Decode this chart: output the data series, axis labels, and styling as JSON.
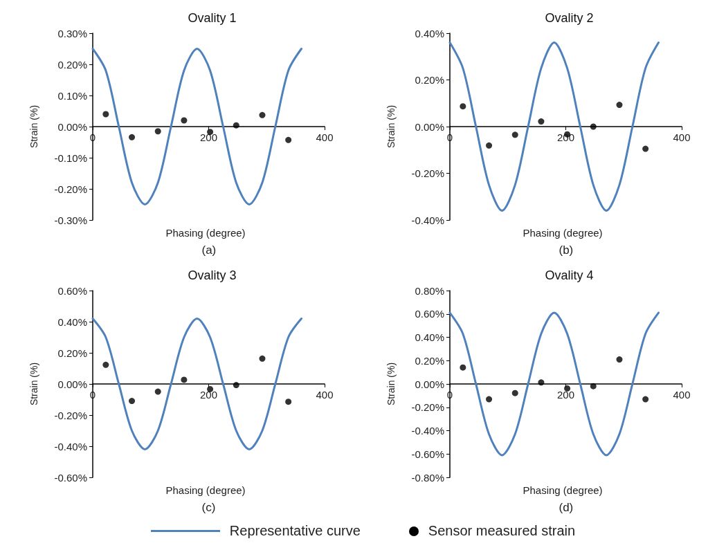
{
  "chart_data": [
    {
      "type": "line",
      "title": "Ovality 1",
      "xlabel": "Phasing (degree)",
      "ylabel": "Strain (%)",
      "annotations": [
        "(a)"
      ],
      "xlim": [
        0,
        400
      ],
      "xticks": [
        0,
        200,
        400
      ],
      "ylim": [
        -0.3,
        0.3
      ],
      "yticks": [
        {
          "value": -0.3,
          "label": "-0.30%"
        },
        {
          "value": -0.2,
          "label": "-0.20%"
        },
        {
          "value": -0.1,
          "label": "-0.10%"
        },
        {
          "value": 0,
          "label": "0.00%"
        },
        {
          "value": 0.1,
          "label": "0.10%"
        },
        {
          "value": 0.2,
          "label": "0.20%"
        },
        {
          "value": 0.3,
          "label": "0.30%"
        }
      ],
      "grid": false,
      "series": [
        {
          "type": "line",
          "color": "#4f81bd",
          "marker": "none",
          "line_style": "solid",
          "x": [
            0,
            22.5,
            45,
            67.5,
            90,
            112.5,
            135,
            157.5,
            180,
            202.5,
            225,
            247.5,
            270,
            292.5,
            315,
            337.5,
            360
          ],
          "values": [
            0.25,
            0.18,
            0,
            -0.18,
            -0.25,
            -0.18,
            0,
            0.18,
            0.25,
            0.18,
            0,
            -0.18,
            -0.25,
            -0.18,
            0,
            0.18,
            0.25
          ]
        },
        {
          "type": "scatter",
          "color": "#000000",
          "marker": "circle",
          "x": [
            22.5,
            67.5,
            112.5,
            157.5,
            202.5,
            247.5,
            292.5,
            337.5
          ],
          "values": [
            0.04,
            -0.034,
            -0.015,
            0.02,
            -0.017,
            0.004,
            0.037,
            -0.043
          ]
        }
      ]
    },
    {
      "type": "line",
      "title": "Ovality 2",
      "xlabel": "Phasing (degree)",
      "ylabel": "Strain (%)",
      "annotations": [
        "(b)"
      ],
      "xlim": [
        0,
        400
      ],
      "xticks": [
        0,
        200,
        400
      ],
      "ylim": [
        -0.4,
        0.4
      ],
      "yticks": [
        {
          "value": -0.4,
          "label": "-0.40%"
        },
        {
          "value": -0.2,
          "label": "-0.20%"
        },
        {
          "value": 0,
          "label": "0.00%"
        },
        {
          "value": 0.2,
          "label": "0.20%"
        },
        {
          "value": 0.4,
          "label": "0.40%"
        }
      ],
      "grid": false,
      "series": [
        {
          "type": "line",
          "color": "#4f81bd",
          "marker": "none",
          "line_style": "solid",
          "x": [
            0,
            22.5,
            45,
            67.5,
            90,
            112.5,
            135,
            157.5,
            180,
            202.5,
            225,
            247.5,
            270,
            292.5,
            315,
            337.5,
            360
          ],
          "values": [
            0.36,
            0.25,
            0,
            -0.25,
            -0.36,
            -0.25,
            0,
            0.25,
            0.36,
            0.25,
            0,
            -0.25,
            -0.36,
            -0.25,
            0,
            0.25,
            0.36
          ]
        },
        {
          "type": "scatter",
          "color": "#000000",
          "marker": "circle",
          "x": [
            22.5,
            67.5,
            112.5,
            157.5,
            202.5,
            247.5,
            292.5,
            337.5
          ],
          "values": [
            0.087,
            -0.081,
            -0.035,
            0.022,
            -0.033,
            0,
            0.093,
            -0.095
          ]
        }
      ]
    },
    {
      "type": "line",
      "title": "Ovality 3",
      "xlabel": "Phasing (degree)",
      "ylabel": "Strain (%)",
      "annotations": [
        "(c)"
      ],
      "xlim": [
        0,
        400
      ],
      "xticks": [
        0,
        200,
        400
      ],
      "ylim": [
        -0.6,
        0.6
      ],
      "yticks": [
        {
          "value": -0.6,
          "label": "-0.60%"
        },
        {
          "value": -0.4,
          "label": "-0.40%"
        },
        {
          "value": -0.2,
          "label": "-0.20%"
        },
        {
          "value": 0,
          "label": "0.00%"
        },
        {
          "value": 0.2,
          "label": "0.20%"
        },
        {
          "value": 0.4,
          "label": "0.40%"
        },
        {
          "value": 0.6,
          "label": "0.60%"
        }
      ],
      "grid": false,
      "series": [
        {
          "type": "line",
          "color": "#4f81bd",
          "marker": "none",
          "line_style": "solid",
          "x": [
            0,
            22.5,
            45,
            67.5,
            90,
            112.5,
            135,
            157.5,
            180,
            202.5,
            225,
            247.5,
            270,
            292.5,
            315,
            337.5,
            360
          ],
          "values": [
            0.42,
            0.3,
            0,
            -0.3,
            -0.42,
            -0.3,
            0,
            0.3,
            0.42,
            0.3,
            0,
            -0.3,
            -0.42,
            -0.3,
            0,
            0.3,
            0.42
          ]
        },
        {
          "type": "scatter",
          "color": "#000000",
          "marker": "circle",
          "x": [
            22.5,
            67.5,
            112.5,
            157.5,
            202.5,
            247.5,
            292.5,
            337.5
          ],
          "values": [
            0.123,
            -0.109,
            -0.049,
            0.027,
            -0.033,
            -0.007,
            0.163,
            -0.114
          ]
        }
      ]
    },
    {
      "type": "line",
      "title": "Ovality 4",
      "xlabel": "Phasing (degree)",
      "ylabel": "Strain (%)",
      "annotations": [
        "(d)"
      ],
      "xlim": [
        0,
        400
      ],
      "xticks": [
        0,
        200,
        400
      ],
      "ylim": [
        -0.8,
        0.8
      ],
      "yticks": [
        {
          "value": -0.8,
          "label": "-0.80%"
        },
        {
          "value": -0.6,
          "label": "-0.60%"
        },
        {
          "value": -0.4,
          "label": "-0.40%"
        },
        {
          "value": -0.2,
          "label": "-0.20%"
        },
        {
          "value": 0,
          "label": "0.00%"
        },
        {
          "value": 0.2,
          "label": "0.20%"
        },
        {
          "value": 0.4,
          "label": "0.40%"
        },
        {
          "value": 0.6,
          "label": "0.60%"
        },
        {
          "value": 0.8,
          "label": "0.80%"
        }
      ],
      "grid": false,
      "legend": "bottom",
      "series": [
        {
          "type": "line",
          "name": "Representative curve",
          "color": "#4f81bd",
          "marker": "none",
          "line_style": "solid",
          "x": [
            0,
            22.5,
            45,
            67.5,
            90,
            112.5,
            135,
            157.5,
            180,
            202.5,
            225,
            247.5,
            270,
            292.5,
            315,
            337.5,
            360
          ],
          "values": [
            0.61,
            0.43,
            0,
            -0.43,
            -0.61,
            -0.43,
            0,
            0.43,
            0.61,
            0.43,
            0,
            -0.43,
            -0.61,
            -0.43,
            0,
            0.43,
            0.61
          ]
        },
        {
          "type": "scatter",
          "name": "Sensor measured strain",
          "color": "#000000",
          "marker": "circle",
          "x": [
            22.5,
            67.5,
            112.5,
            157.5,
            202.5,
            247.5,
            292.5,
            337.5
          ],
          "values": [
            0.141,
            -0.131,
            -0.078,
            0.013,
            -0.038,
            -0.019,
            0.21,
            -0.131
          ]
        }
      ]
    }
  ]
}
